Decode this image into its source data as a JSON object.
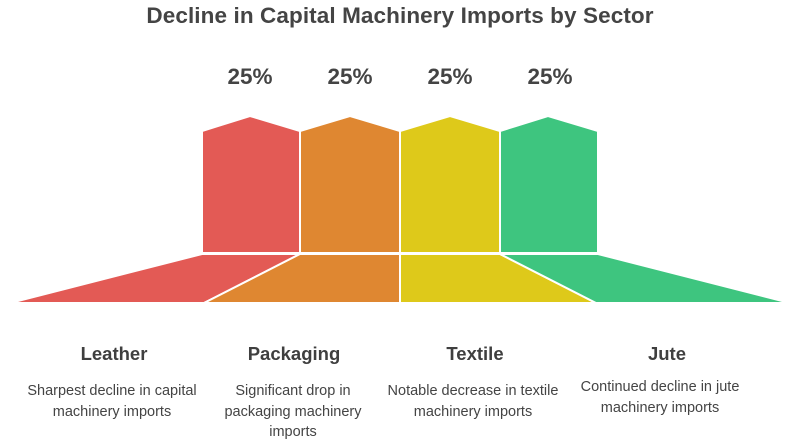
{
  "title": "Decline in Capital Machinery Imports by Sector",
  "sectors": [
    {
      "label": "Leather",
      "percent": "25%",
      "description": "Sharpest decline in capital machinery imports",
      "color": "#e35a55"
    },
    {
      "label": "Packaging",
      "percent": "25%",
      "description": "Significant drop in packaging machinery imports",
      "color": "#df8731"
    },
    {
      "label": "Textile",
      "percent": "25%",
      "description": "Notable decrease in textile machinery imports",
      "color": "#dec91a"
    },
    {
      "label": "Jute",
      "percent": "25%",
      "description": "Continued decline in jute machinery imports",
      "color": "#3ec57f"
    }
  ]
}
